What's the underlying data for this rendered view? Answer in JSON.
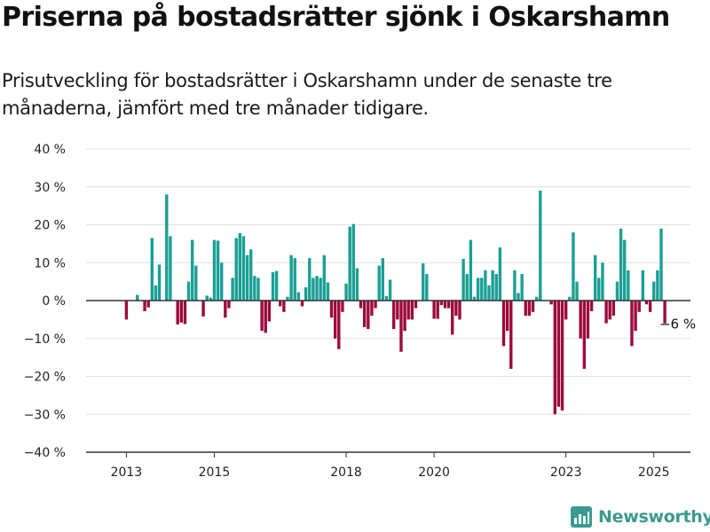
{
  "title": "Priserna på bostadsrätter sjönk i Oskarshamn",
  "subtitle": "Prisutveckling för bostadsrätter i Oskarshamn under de senaste tre månaderna, jämfört med tre månader tidigare.",
  "brand": {
    "name": "Newsworthy",
    "color": "#3a9a91"
  },
  "colors": {
    "positive": "#1a9f95",
    "negative": "#9c0a3d",
    "grid": "#e0e0e0",
    "axis": "#333333"
  },
  "chart_data": {
    "type": "bar",
    "title": "Priserna på bostadsrätter sjönk i Oskarshamn",
    "xlabel": "",
    "ylabel": "",
    "ylim": [
      -40,
      40
    ],
    "xlim": [
      "2012-02",
      "2025-11"
    ],
    "grid": true,
    "y_ticks": [
      {
        "value": 40,
        "label": "40 %"
      },
      {
        "value": 30,
        "label": "30 %"
      },
      {
        "value": 20,
        "label": "20 %"
      },
      {
        "value": 10,
        "label": "10 %"
      },
      {
        "value": 0,
        "label": "0 %"
      },
      {
        "value": -10,
        "label": "−10 %"
      },
      {
        "value": -20,
        "label": "−20 %"
      },
      {
        "value": -30,
        "label": "−30 %"
      },
      {
        "value": -40,
        "label": "−40 %"
      }
    ],
    "x_ticks": [
      {
        "value": "2013-01",
        "label": "2013"
      },
      {
        "value": "2015-01",
        "label": "2015"
      },
      {
        "value": "2018-01",
        "label": "2018"
      },
      {
        "value": "2020-01",
        "label": "2020"
      },
      {
        "value": "2023-01",
        "label": "2023"
      },
      {
        "value": "2025-01",
        "label": "2025"
      }
    ],
    "annotation": {
      "x": "2025-03",
      "value": -6,
      "label": "−6 %"
    },
    "series": [
      {
        "points": [
          [
            "2013-01",
            -5
          ],
          [
            "2013-04",
            1.5
          ],
          [
            "2013-06",
            -2.8
          ],
          [
            "2013-07",
            -1.8
          ],
          [
            "2013-08",
            16.5
          ],
          [
            "2013-09",
            4
          ],
          [
            "2013-10",
            9.5
          ],
          [
            "2013-12",
            28
          ],
          [
            "2014-01",
            17
          ],
          [
            "2014-03",
            -6.3
          ],
          [
            "2014-04",
            -5.8
          ],
          [
            "2014-05",
            -6.2
          ],
          [
            "2014-06",
            5
          ],
          [
            "2014-07",
            16
          ],
          [
            "2014-08",
            9.2
          ],
          [
            "2014-10",
            -4.2
          ],
          [
            "2014-11",
            1.3
          ],
          [
            "2014-12",
            0.8
          ],
          [
            "2015-01",
            16
          ],
          [
            "2015-02",
            15.8
          ],
          [
            "2015-03",
            10
          ],
          [
            "2015-04",
            -4.5
          ],
          [
            "2015-05",
            -2
          ],
          [
            "2015-06",
            6
          ],
          [
            "2015-07",
            16.5
          ],
          [
            "2015-08",
            17.8
          ],
          [
            "2015-09",
            17
          ],
          [
            "2015-10",
            12
          ],
          [
            "2015-11",
            13.5
          ],
          [
            "2015-12",
            6.5
          ],
          [
            "2016-01",
            6
          ],
          [
            "2016-02",
            -8
          ],
          [
            "2016-03",
            -8.5
          ],
          [
            "2016-04",
            -5.5
          ],
          [
            "2016-05",
            7.5
          ],
          [
            "2016-06",
            7.8
          ],
          [
            "2016-07",
            -1.5
          ],
          [
            "2016-08",
            -3
          ],
          [
            "2016-09",
            1
          ],
          [
            "2016-10",
            12
          ],
          [
            "2016-11",
            11.2
          ],
          [
            "2016-12",
            2.2
          ],
          [
            "2017-01",
            -1.5
          ],
          [
            "2017-02",
            3.5
          ],
          [
            "2017-03",
            11.2
          ],
          [
            "2017-04",
            6
          ],
          [
            "2017-05",
            6.5
          ],
          [
            "2017-06",
            6
          ],
          [
            "2017-07",
            12
          ],
          [
            "2017-08",
            4.8
          ],
          [
            "2017-09",
            -4.5
          ],
          [
            "2017-10",
            -10
          ],
          [
            "2017-11",
            -12.8
          ],
          [
            "2017-12",
            -3
          ],
          [
            "2018-01",
            4.5
          ],
          [
            "2018-02",
            19.5
          ],
          [
            "2018-03",
            20.2
          ],
          [
            "2018-04",
            8.5
          ],
          [
            "2018-05",
            -2
          ],
          [
            "2018-06",
            -7
          ],
          [
            "2018-07",
            -7.5
          ],
          [
            "2018-08",
            -4
          ],
          [
            "2018-09",
            -2
          ],
          [
            "2018-10",
            9.2
          ],
          [
            "2018-11",
            11.2
          ],
          [
            "2018-12",
            1.2
          ],
          [
            "2019-01",
            5.5
          ],
          [
            "2019-02",
            -7.5
          ],
          [
            "2019-03",
            -5
          ],
          [
            "2019-04",
            -13.5
          ],
          [
            "2019-05",
            -8
          ],
          [
            "2019-06",
            -5
          ],
          [
            "2019-07",
            -5
          ],
          [
            "2019-08",
            -2
          ],
          [
            "2019-10",
            9.8
          ],
          [
            "2019-11",
            7
          ],
          [
            "2020-01",
            -4.8
          ],
          [
            "2020-02",
            -4.8
          ],
          [
            "2020-03",
            -1.2
          ],
          [
            "2020-04",
            -2
          ],
          [
            "2020-05",
            -2
          ],
          [
            "2020-06",
            -9
          ],
          [
            "2020-07",
            -4
          ],
          [
            "2020-08",
            -5
          ],
          [
            "2020-09",
            11
          ],
          [
            "2020-10",
            7
          ],
          [
            "2020-11",
            16
          ],
          [
            "2020-12",
            1
          ],
          [
            "2021-01",
            6
          ],
          [
            "2021-02",
            6
          ],
          [
            "2021-03",
            8
          ],
          [
            "2021-04",
            4
          ],
          [
            "2021-05",
            8
          ],
          [
            "2021-06",
            7
          ],
          [
            "2021-07",
            14
          ],
          [
            "2021-08",
            -12
          ],
          [
            "2021-09",
            -8
          ],
          [
            "2021-10",
            -18
          ],
          [
            "2021-11",
            8
          ],
          [
            "2021-12",
            2
          ],
          [
            "2022-01",
            7
          ],
          [
            "2022-02",
            -4
          ],
          [
            "2022-03",
            -4
          ],
          [
            "2022-04",
            -3
          ],
          [
            "2022-05",
            1
          ],
          [
            "2022-06",
            29
          ],
          [
            "2022-09",
            -1
          ],
          [
            "2022-10",
            -30
          ],
          [
            "2022-11",
            -28
          ],
          [
            "2022-12",
            -29
          ],
          [
            "2023-01",
            -5
          ],
          [
            "2023-02",
            1
          ],
          [
            "2023-03",
            18
          ],
          [
            "2023-04",
            5
          ],
          [
            "2023-05",
            -10
          ],
          [
            "2023-06",
            -18
          ],
          [
            "2023-07",
            -10
          ],
          [
            "2023-08",
            -2.8
          ],
          [
            "2023-09",
            12
          ],
          [
            "2023-10",
            6
          ],
          [
            "2023-11",
            10
          ],
          [
            "2023-12",
            -6
          ],
          [
            "2024-01",
            -5
          ],
          [
            "2024-02",
            -4
          ],
          [
            "2024-03",
            5
          ],
          [
            "2024-04",
            19
          ],
          [
            "2024-05",
            16
          ],
          [
            "2024-06",
            8
          ],
          [
            "2024-07",
            -12
          ],
          [
            "2024-08",
            -8
          ],
          [
            "2024-09",
            -3
          ],
          [
            "2024-10",
            8
          ],
          [
            "2024-11",
            -1
          ],
          [
            "2024-12",
            -3
          ],
          [
            "2025-01",
            5
          ],
          [
            "2025-02",
            8
          ],
          [
            "2025-03",
            19
          ],
          [
            "2025-04",
            -6
          ]
        ]
      }
    ]
  }
}
